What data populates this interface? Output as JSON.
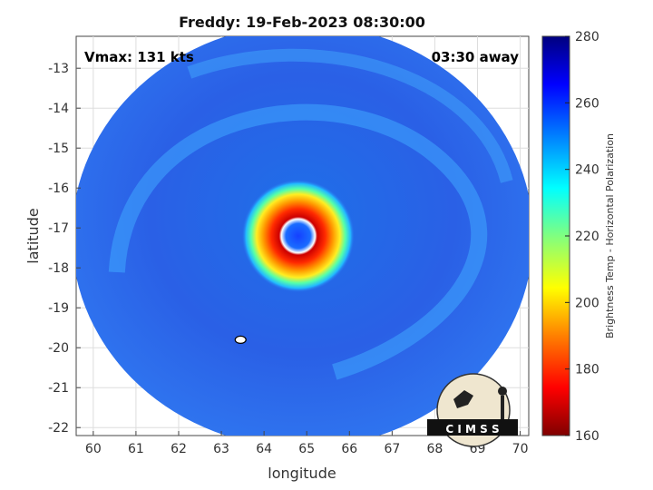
{
  "chart_data": {
    "type": "heatmap",
    "title": "Freddy: 19-Feb-2023 08:30:00",
    "xlabel": "longitude",
    "ylabel": "latitude",
    "xlim": [
      59.6,
      70.2
    ],
    "ylim": [
      -22.2,
      -12.2
    ],
    "xticks": [
      60,
      61,
      62,
      63,
      64,
      65,
      66,
      67,
      68,
      69,
      70
    ],
    "yticks": [
      -13,
      -14,
      -15,
      -16,
      -17,
      -18,
      -19,
      -20,
      -21,
      -22
    ],
    "grid": true,
    "annotations": {
      "top_left": "Vmax: 131 kts",
      "top_right": "03:30 away"
    },
    "colorbar": {
      "label": "Brightness Temp - Horizontal Polarization",
      "min": 160,
      "max": 280,
      "ticks": [
        280,
        260,
        240,
        220,
        200,
        180,
        160
      ],
      "colormap": [
        "#7f0000",
        "#ff0000",
        "#ff8000",
        "#ffff00",
        "#80ff80",
        "#00ffff",
        "#0080ff",
        "#0000ff",
        "#00007f"
      ]
    },
    "swath": {
      "center_lon": 64.9,
      "center_lat": -17.2,
      "radius_lon": 5.4,
      "radius_lat": 5.3
    },
    "storm_center": {
      "lon": 64.8,
      "lat": -17.2
    },
    "logo_text": "C I M S S"
  }
}
